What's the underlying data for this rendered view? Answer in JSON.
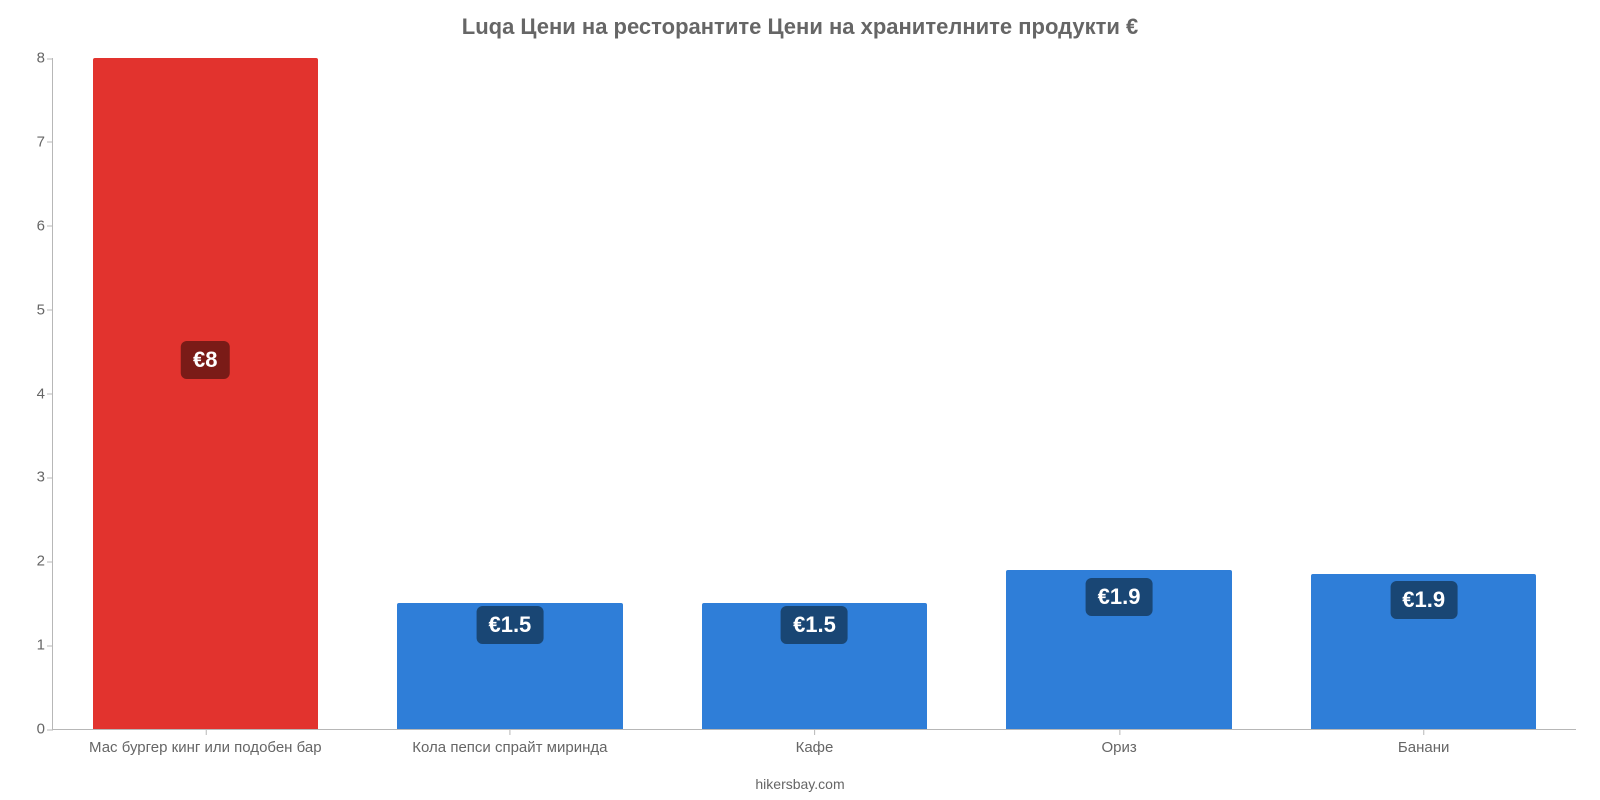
{
  "chart": {
    "type": "bar",
    "title": "Luqa Цени на ресторантите Цени на хранителните продукти €",
    "title_fontsize": 22,
    "title_color": "#666666",
    "background_color": "#ffffff",
    "axis_color": "#b7b7b7",
    "tick_label_color": "#666666",
    "tick_label_fontsize": 15,
    "ylim": [
      0,
      8
    ],
    "ytick_step": 1,
    "yticks": [
      "0",
      "1",
      "2",
      "3",
      "4",
      "5",
      "6",
      "7",
      "8"
    ],
    "bar_width_pct": 74,
    "categories": [
      "Мас бургер кинг или подобен бар",
      "Кола пепси спрайт миринда",
      "Кафе",
      "Ориз",
      "Банани"
    ],
    "values": [
      8.0,
      1.5,
      1.5,
      1.9,
      1.85
    ],
    "value_labels": [
      "€8",
      "€1.5",
      "€1.5",
      "€1.9",
      "€1.9"
    ],
    "bar_colors": [
      "#e2332e",
      "#2f7ed8",
      "#2f7ed8",
      "#2f7ed8",
      "#2f7ed8"
    ],
    "badge_colors": [
      "#7a1b17",
      "#194674",
      "#194674",
      "#194674",
      "#194674"
    ],
    "badge_fontsize": 22,
    "badge_text_color": "#ffffff",
    "badge_vpos": [
      0.55,
      0.83,
      0.83,
      0.83,
      0.83
    ],
    "x_label_fontsize": 15,
    "source_text": "hikersbay.com",
    "source_fontsize": 14,
    "source_color": "#666666"
  }
}
